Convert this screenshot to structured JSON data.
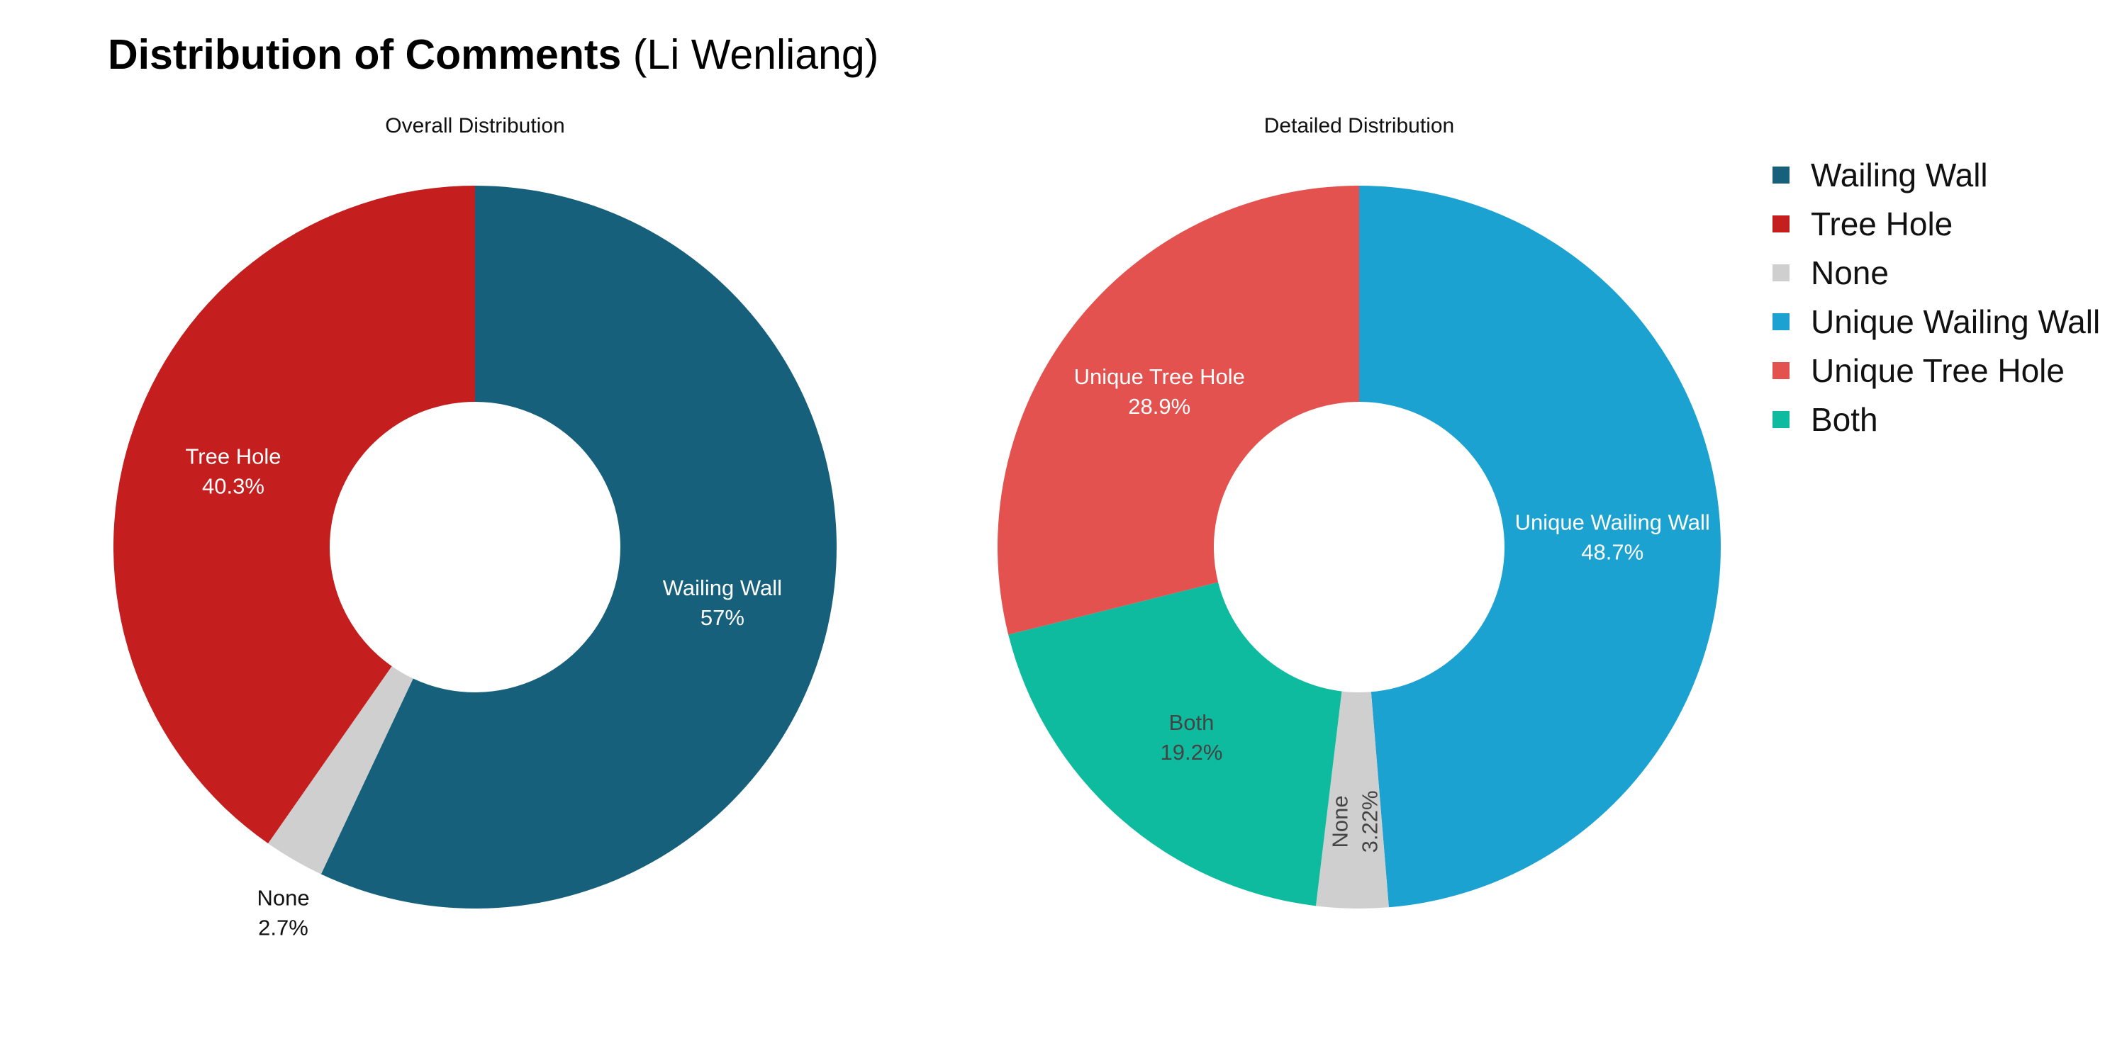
{
  "title": {
    "bold": "Distribution of Comments",
    "rest": " (Li Wenliang)"
  },
  "chart_data": [
    {
      "type": "pie",
      "subtitle": "Overall Distribution",
      "slices": [
        {
          "label": "Wailing Wall",
          "value": 57.0,
          "display": "57%",
          "color": "#17607b",
          "text_color": "#ffffff",
          "label_outside": false
        },
        {
          "label": "None",
          "value": 2.7,
          "display": "2.7%",
          "color": "#cfcfcf",
          "text_color": "#111111",
          "label_outside": true
        },
        {
          "label": "Tree Hole",
          "value": 40.3,
          "display": "40.3%",
          "color": "#c41f1e",
          "text_color": "#ffffff",
          "label_outside": false
        }
      ]
    },
    {
      "type": "pie",
      "subtitle": "Detailed Distribution",
      "slices": [
        {
          "label": "Unique Wailing Wall",
          "value": 48.7,
          "display": "48.7%",
          "color": "#1ca2d0",
          "text_color": "#ffffff",
          "label_outside": false
        },
        {
          "label": "None",
          "value": 3.22,
          "display": "3.22%",
          "color": "#cfcfcf",
          "text_color": "#444444",
          "label_outside": false,
          "rotated": true
        },
        {
          "label": "Both",
          "value": 19.2,
          "display": "19.2%",
          "color": "#0fbb9e",
          "text_color": "#444444",
          "label_outside": false
        },
        {
          "label": "Unique Tree Hole",
          "value": 28.9,
          "display": "28.9%",
          "color": "#e3524e",
          "text_color": "#ffffff",
          "label_outside": false
        }
      ]
    }
  ],
  "legend": [
    {
      "label": "Wailing Wall",
      "color": "#17607b"
    },
    {
      "label": "Tree Hole",
      "color": "#c41f1e"
    },
    {
      "label": "None",
      "color": "#cfcfcf"
    },
    {
      "label": "Unique Wailing Wall",
      "color": "#1ca2d0"
    },
    {
      "label": "Unique Tree Hole",
      "color": "#e3524e"
    },
    {
      "label": "Both",
      "color": "#0fbb9e"
    }
  ]
}
